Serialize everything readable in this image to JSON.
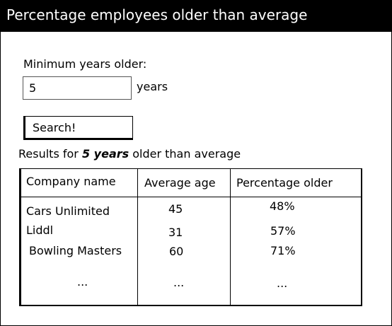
{
  "window": {
    "title": "Percentage employees older than average"
  },
  "form": {
    "min_years_label": "Minimum years older:",
    "min_years_value": "5",
    "years_suffix": "years",
    "search_button": "Search!"
  },
  "results": {
    "prefix": "Results for ",
    "highlight": "5 years",
    "suffix": " older than average"
  },
  "table": {
    "headers": [
      "Company name",
      "Average age",
      "Percentage older"
    ],
    "rows": [
      [
        "Cars Unlimited",
        "45",
        "48%"
      ],
      [
        "Liddl",
        "31",
        "57%"
      ],
      [
        "Bowling Masters",
        "60",
        "71%"
      ],
      [
        "...",
        "...",
        "..."
      ]
    ]
  }
}
